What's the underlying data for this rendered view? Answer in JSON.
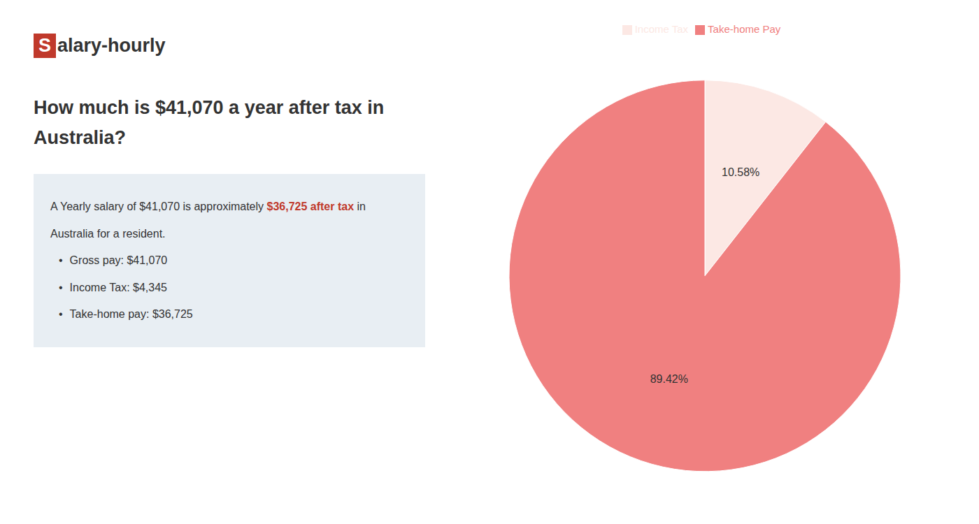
{
  "chart_data": {
    "type": "pie",
    "title": "How much is $41,070 a year after tax in Australia?",
    "categories": [
      "Income Tax",
      "Take-home Pay"
    ],
    "values": [
      10.58,
      89.42
    ],
    "value_labels": [
      "10.58%",
      "89.42%"
    ],
    "colors": [
      "#fce8e4",
      "#f08080"
    ],
    "data_labels": true,
    "legend": "top",
    "annotations": [
      {
        "segments": [
          {
            "text": "S",
            "color": "#c0392b"
          },
          {
            "text": "alary-hourly"
          }
        ]
      },
      {
        "segments": [
          {
            "text": "A Yearly salary of $41,070 is approximately "
          },
          {
            "text": "$36,725 after tax",
            "color": "#c0392b"
          },
          {
            "text": " in"
          }
        ]
      },
      {
        "segments": [
          {
            "text": "Australia for a resident."
          }
        ]
      },
      {
        "bullet": "•",
        "segments": [
          {
            "text": "Gross pay: $41,070"
          }
        ]
      },
      {
        "bullet": "•",
        "segments": [
          {
            "text": "Income Tax: $4,345"
          }
        ]
      },
      {
        "bullet": "•",
        "segments": [
          {
            "text": "Take-home pay: $36,725"
          }
        ]
      }
    ]
  }
}
